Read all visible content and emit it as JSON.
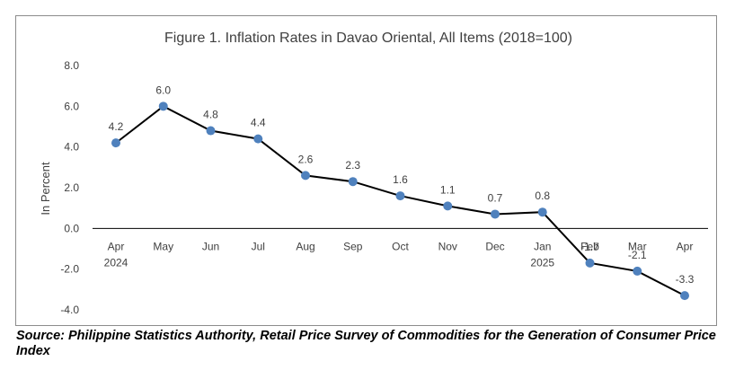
{
  "chart_data": {
    "type": "line",
    "title": "Figure 1. Inflation Rates in Davao Oriental, All Items (2018=100)",
    "ylabel": "In Percent",
    "xlabel": "",
    "ylim": [
      -4.0,
      8.0
    ],
    "yticks": [
      "8.0",
      "6.0",
      "4.0",
      "2.0",
      "0.0",
      "-2.0",
      "-4.0"
    ],
    "ytick_values": [
      8,
      6,
      4,
      2,
      0,
      -2,
      -4
    ],
    "categories": [
      "Apr",
      "May",
      "Jun",
      "Jul",
      "Aug",
      "Sep",
      "Oct",
      "Nov",
      "Dec",
      "Jan",
      "Feb",
      "Mar",
      "Apr"
    ],
    "category_years": [
      "2024",
      "",
      "",
      "",
      "",
      "",
      "",
      "",
      "",
      "2025",
      "",
      "",
      ""
    ],
    "series": [
      {
        "values": [
          4.2,
          6.0,
          4.8,
          4.4,
          2.6,
          2.3,
          1.6,
          1.1,
          0.7,
          0.8,
          -1.7,
          -2.1,
          -3.3
        ],
        "labels": [
          "4.2",
          "6.0",
          "4.8",
          "4.4",
          "2.6",
          "2.3",
          "1.6",
          "1.1",
          "0.7",
          "0.8",
          "-1.7",
          "-2.1",
          "-3.3"
        ]
      }
    ],
    "grid": false,
    "colors": {
      "line": "#000000",
      "marker": "#4f81bd",
      "axis": "#000000",
      "text": "#404040"
    }
  },
  "source": "Source: Philippine Statistics Authority, Retail Price Survey of Commodities for the Generation of Consumer Price Index"
}
